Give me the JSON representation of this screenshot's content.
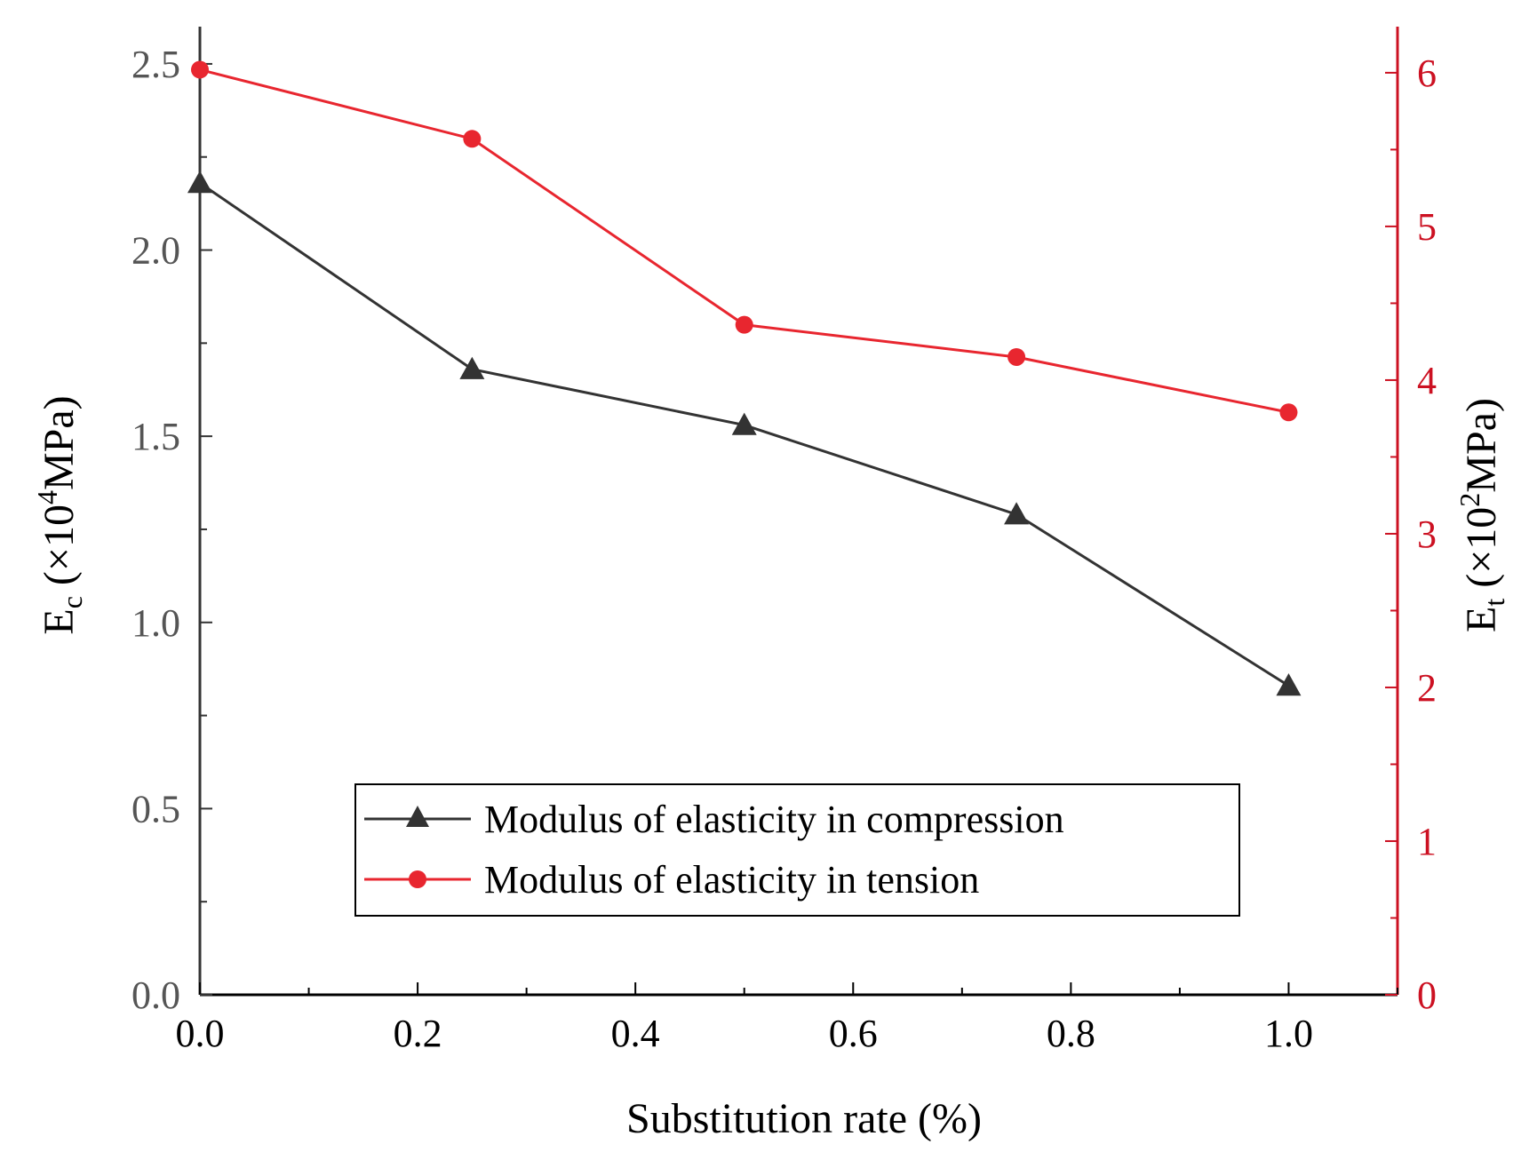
{
  "chart_data": {
    "type": "line",
    "xlabel": "Substitution rate (%)",
    "x": [
      0.0,
      0.25,
      0.5,
      0.75,
      1.0
    ],
    "xlim": [
      0.0,
      1.1
    ],
    "xticks": [
      "0.0",
      "0.2",
      "0.4",
      "0.6",
      "0.8",
      "1.0"
    ],
    "xtick_values": [
      0.0,
      0.2,
      0.4,
      0.6,
      0.8,
      1.0
    ],
    "y_left": {
      "label_main": "E",
      "label_sub": "c",
      "label_pre": " (×10",
      "label_sup": "4",
      "label_post": "MPa)",
      "lim": [
        0.0,
        2.6
      ],
      "ticks": [
        "0.0",
        "0.5",
        "1.0",
        "1.5",
        "2.0",
        "2.5"
      ],
      "tick_values": [
        0.0,
        0.5,
        1.0,
        1.5,
        2.0,
        2.5
      ]
    },
    "y_right": {
      "label_main": "E",
      "label_sub": "t",
      "label_pre": " (×10",
      "label_sup": "2",
      "label_post": "MPa)",
      "lim": [
        0,
        6.3
      ],
      "ticks": [
        "0",
        "1",
        "2",
        "3",
        "4",
        "5",
        "6"
      ],
      "tick_values": [
        0,
        1,
        2,
        3,
        4,
        5,
        6
      ]
    },
    "series": [
      {
        "name": "Modulus of elasticity in compression",
        "axis": "left",
        "marker": "triangle",
        "color": "#333333",
        "values": [
          2.18,
          1.68,
          1.53,
          1.29,
          0.83
        ]
      },
      {
        "name": "Modulus of elasticity in tension",
        "axis": "right",
        "marker": "circle",
        "color": "#e8262f",
        "values": [
          6.02,
          5.57,
          4.36,
          4.15,
          3.79
        ]
      }
    ],
    "legend_position": "lower-center"
  },
  "colors": {
    "left_axis": "#333333",
    "right_axis": "#cc1122",
    "left_tick_text": "#555555",
    "right_tick_text": "#cc1122"
  }
}
